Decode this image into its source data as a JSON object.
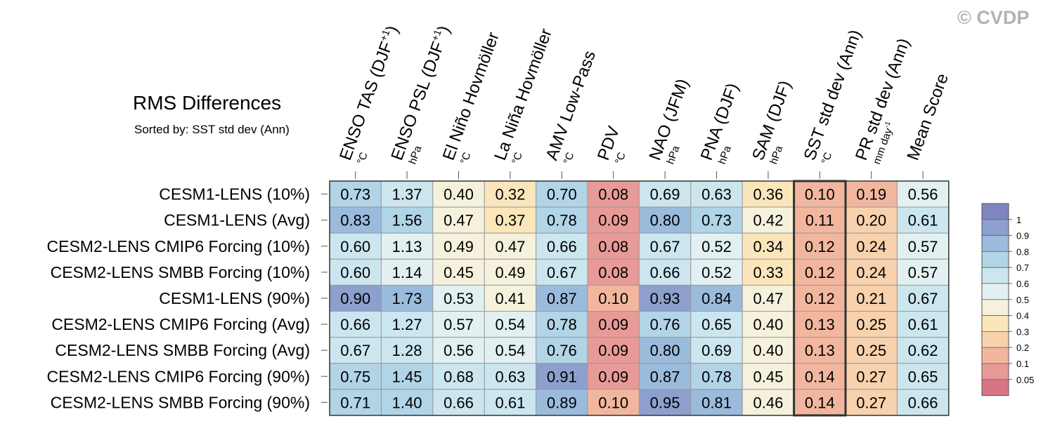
{
  "title": "RMS Differences",
  "subtitle": "Sorted by: SST std dev (Ann)",
  "watermark": "© CVDP",
  "chart_data": {
    "type": "heatmap",
    "title": "RMS Differences",
    "subtitle": "Sorted by: SST std dev (Ann)",
    "highlighted_column": "SST std dev (Ann)",
    "columns": [
      {
        "label": "ENSO TAS (DJF",
        "sup": "+1",
        "close": ")",
        "unit": "°C"
      },
      {
        "label": "ENSO PSL (DJF",
        "sup": "+1",
        "close": ")",
        "unit": "hPa"
      },
      {
        "label": "El Niño Hovmöller",
        "unit": "°C"
      },
      {
        "label": "La Niña Hovmöller",
        "unit": "°C"
      },
      {
        "label": "AMV Low-Pass",
        "unit": "°C"
      },
      {
        "label": "PDV",
        "unit": "°C"
      },
      {
        "label": "NAO (JFM)",
        "unit": "hPa"
      },
      {
        "label": "PNA (DJF)",
        "unit": "hPa"
      },
      {
        "label": "SAM (DJF)",
        "unit": "hPa"
      },
      {
        "label": "SST std dev (Ann)",
        "unit": "°C"
      },
      {
        "label": "PR std dev (Ann)",
        "unit": "mm day",
        "unit_sup": "-1"
      },
      {
        "label": "Mean Score",
        "unit": ""
      }
    ],
    "rows": [
      "CESM1-LENS (10%)",
      "CESM1-LENS (Avg)",
      "CESM2-LENS CMIP6 Forcing (10%)",
      "CESM2-LENS SMBB Forcing (10%)",
      "CESM1-LENS (90%)",
      "CESM2-LENS CMIP6 Forcing (Avg)",
      "CESM2-LENS SMBB Forcing (Avg)",
      "CESM2-LENS CMIP6 Forcing (90%)",
      "CESM2-LENS SMBB Forcing (90%)"
    ],
    "values": [
      [
        "0.73",
        "1.37",
        "0.40",
        "0.32",
        "0.70",
        "0.08",
        "0.69",
        "0.63",
        "0.36",
        "0.10",
        "0.19",
        "0.56"
      ],
      [
        "0.83",
        "1.56",
        "0.47",
        "0.37",
        "0.78",
        "0.09",
        "0.80",
        "0.73",
        "0.42",
        "0.11",
        "0.20",
        "0.61"
      ],
      [
        "0.60",
        "1.13",
        "0.49",
        "0.47",
        "0.66",
        "0.08",
        "0.67",
        "0.52",
        "0.34",
        "0.12",
        "0.24",
        "0.57"
      ],
      [
        "0.60",
        "1.14",
        "0.45",
        "0.49",
        "0.67",
        "0.08",
        "0.66",
        "0.52",
        "0.33",
        "0.12",
        "0.24",
        "0.57"
      ],
      [
        "0.90",
        "1.73",
        "0.53",
        "0.41",
        "0.87",
        "0.10",
        "0.93",
        "0.84",
        "0.47",
        "0.12",
        "0.21",
        "0.67"
      ],
      [
        "0.66",
        "1.27",
        "0.57",
        "0.54",
        "0.78",
        "0.09",
        "0.76",
        "0.65",
        "0.40",
        "0.13",
        "0.25",
        "0.61"
      ],
      [
        "0.67",
        "1.28",
        "0.56",
        "0.54",
        "0.76",
        "0.09",
        "0.80",
        "0.69",
        "0.40",
        "0.13",
        "0.25",
        "0.62"
      ],
      [
        "0.75",
        "1.45",
        "0.68",
        "0.63",
        "0.91",
        "0.09",
        "0.87",
        "0.78",
        "0.45",
        "0.14",
        "0.27",
        "0.65"
      ],
      [
        "0.71",
        "1.40",
        "0.66",
        "0.61",
        "0.89",
        "0.10",
        "0.95",
        "0.81",
        "0.46",
        "0.14",
        "0.27",
        "0.66"
      ]
    ],
    "colorbar": {
      "labels": [
        "1",
        "0.9",
        "0.8",
        "0.7",
        "0.6",
        "0.5",
        "0.4",
        "0.3",
        "0.2",
        "0.1",
        "0.05"
      ],
      "levels": [
        0.05,
        0.1,
        0.2,
        0.3,
        0.4,
        0.5,
        0.6,
        0.7,
        0.8,
        0.9,
        1
      ],
      "colors": [
        "#d87585",
        "#e89a97",
        "#f2b69f",
        "#f7d2ad",
        "#fbe6bb",
        "#f5f1dd",
        "#e3f0f1",
        "#cbe6ef",
        "#b1d4e6",
        "#9bbbdc",
        "#8c9fcd",
        "#7f85c0"
      ]
    }
  }
}
